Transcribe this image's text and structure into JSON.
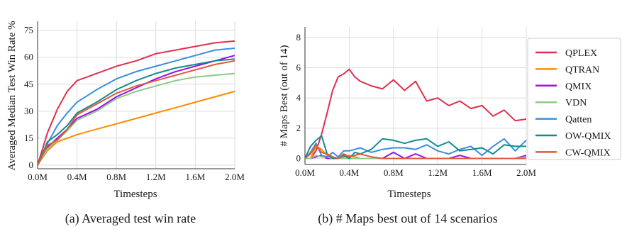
{
  "colors": {
    "QPLEX": "#e0304e",
    "QTRAN": "#ff8c00",
    "QMIX": "#9b10e8",
    "VDN": "#8fc98a",
    "Qatten": "#3a8fe0",
    "OW-QMIX": "#138c8c",
    "CW-QMIX": "#dd5a3c"
  },
  "legend": {
    "placement": "right",
    "entries": [
      "QPLEX",
      "QTRAN",
      "QMIX",
      "VDN",
      "Qatten",
      "OW-QMIX",
      "CW-QMIX"
    ]
  },
  "captions": {
    "a": "(a) Averaged test win rate",
    "b": "(b) # Maps best out of 14 scenarios"
  },
  "chart_data": [
    {
      "type": "line",
      "title": "",
      "xlabel": "Timesteps",
      "ylabel": "Averaged Median Test Win Rate %",
      "xlim": [
        0,
        2.0
      ],
      "ylim": [
        -2,
        80
      ],
      "xticks": [
        "0.0M",
        "0.4M",
        "0.8M",
        "1.2M",
        "1.6M",
        "2.0M"
      ],
      "yticks": [
        "0",
        "15",
        "30",
        "45",
        "60",
        "75"
      ],
      "grid": true,
      "x": [
        0.0,
        0.1,
        0.2,
        0.3,
        0.4,
        0.6,
        0.8,
        1.0,
        1.2,
        1.4,
        1.6,
        1.8,
        2.0
      ],
      "series": [
        {
          "name": "QPLEX",
          "values": [
            0,
            18,
            31,
            41,
            47,
            51,
            55,
            58,
            62,
            64,
            66,
            68,
            69
          ]
        },
        {
          "name": "QTRAN",
          "values": [
            0,
            8,
            13,
            15,
            17,
            20,
            23,
            26,
            29,
            32,
            35,
            38,
            41
          ]
        },
        {
          "name": "QMIX",
          "values": [
            0,
            10,
            15,
            20,
            26,
            31,
            38,
            43,
            48,
            52,
            55,
            58,
            61
          ]
        },
        {
          "name": "VDN",
          "values": [
            0,
            9,
            14,
            19,
            25,
            30,
            37,
            41,
            44,
            47,
            49,
            50,
            51
          ]
        },
        {
          "name": "Qatten",
          "values": [
            0,
            12,
            22,
            29,
            35,
            42,
            48,
            52,
            55,
            58,
            61,
            64,
            65
          ]
        },
        {
          "name": "OW-QMIX",
          "values": [
            0,
            13,
            17,
            22,
            29,
            35,
            42,
            47,
            51,
            54,
            56,
            58,
            59
          ]
        },
        {
          "name": "CW-QMIX",
          "values": [
            0,
            11,
            14,
            20,
            28,
            34,
            40,
            44,
            47,
            50,
            53,
            56,
            58
          ]
        }
      ]
    },
    {
      "type": "line",
      "title": "",
      "xlabel": "Timesteps",
      "ylabel": "# Maps Best (out of 14)",
      "xlim": [
        0,
        2.0
      ],
      "ylim": [
        -0.4,
        8.7
      ],
      "xticks": [
        "0.0M",
        "0.4M",
        "0.8M",
        "1.2M",
        "1.6M",
        "2.0M"
      ],
      "yticks": [
        "0",
        "2",
        "4",
        "6",
        "8"
      ],
      "grid": true,
      "x": [
        0.0,
        0.05,
        0.1,
        0.15,
        0.2,
        0.25,
        0.3,
        0.35,
        0.4,
        0.45,
        0.5,
        0.6,
        0.7,
        0.8,
        0.9,
        1.0,
        1.1,
        1.2,
        1.3,
        1.4,
        1.5,
        1.6,
        1.7,
        1.8,
        1.9,
        2.0
      ],
      "series": [
        {
          "name": "QPLEX",
          "values": [
            0,
            0,
            0.5,
            1.6,
            3,
            4.5,
            5.4,
            5.6,
            5.9,
            5.4,
            5.1,
            4.8,
            4.6,
            5.2,
            4.5,
            5.1,
            3.8,
            4.0,
            3.5,
            3.8,
            3.3,
            3.5,
            2.8,
            3.2,
            2.5,
            2.6
          ]
        },
        {
          "name": "QTRAN",
          "values": [
            0,
            0,
            0.8,
            0.6,
            0.2,
            0,
            0,
            0.1,
            0.2,
            0.1,
            0,
            0,
            0,
            0,
            0,
            0,
            0,
            0,
            0,
            0,
            0,
            0,
            0,
            0,
            0,
            0
          ]
        },
        {
          "name": "QMIX",
          "values": [
            0,
            0,
            0.1,
            0.2,
            0,
            0,
            0,
            0,
            0,
            0,
            0,
            0,
            0,
            0.4,
            0,
            0.3,
            0,
            0,
            0,
            0.2,
            0,
            0,
            0,
            0,
            0,
            0.2
          ]
        },
        {
          "name": "VDN",
          "values": [
            0,
            0,
            0.2,
            0.1,
            0.1,
            0,
            0,
            0,
            0,
            0,
            0,
            0,
            0,
            0,
            0,
            0,
            0,
            0,
            0,
            0,
            0,
            0,
            0,
            0,
            0,
            0.1
          ]
        },
        {
          "name": "Qatten",
          "values": [
            0,
            0.4,
            1.0,
            0.2,
            0.1,
            0.4,
            0.1,
            0.5,
            0.5,
            0.6,
            0.7,
            0.4,
            0.6,
            0.7,
            0.7,
            0.6,
            0.9,
            0.5,
            0.3,
            0.6,
            0.8,
            0.2,
            0.8,
            1.3,
            0.5,
            1.2
          ]
        },
        {
          "name": "OW-QMIX",
          "values": [
            0,
            0.8,
            1.2,
            1.5,
            0.3,
            0,
            0,
            0.2,
            0,
            0.4,
            0.3,
            0.6,
            1.3,
            1.2,
            1.0,
            1.2,
            1.3,
            0.8,
            1.1,
            0.5,
            0.6,
            0.7,
            0.3,
            0.9,
            0.8,
            0.8
          ]
        },
        {
          "name": "CW-QMIX",
          "values": [
            0,
            0.3,
            0.9,
            0.4,
            0.3,
            0.1,
            0,
            0.3,
            0.1,
            0.2,
            0.3,
            0.1,
            0,
            0,
            0,
            0,
            0,
            0,
            0,
            0,
            0,
            0,
            0,
            0,
            0,
            0
          ]
        }
      ]
    }
  ]
}
